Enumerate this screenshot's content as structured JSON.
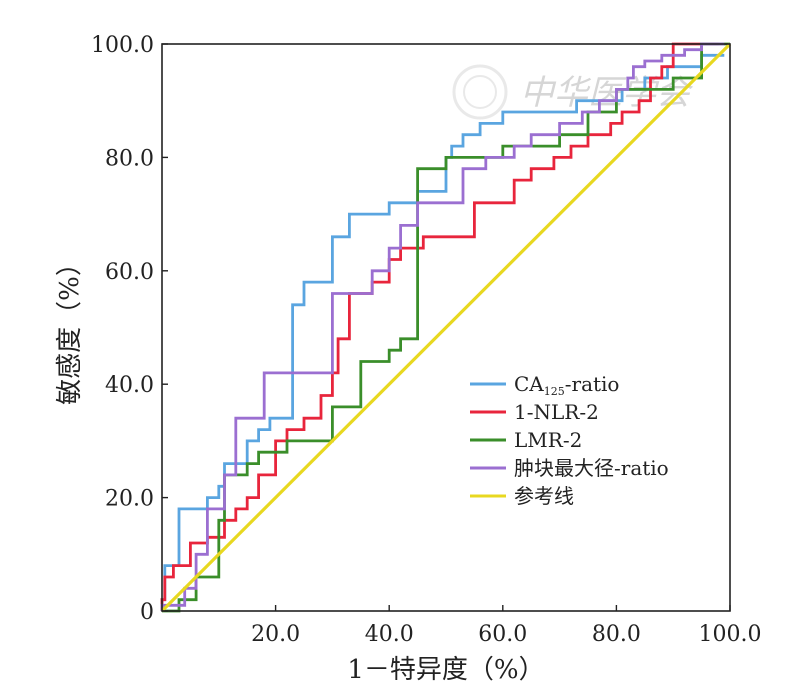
{
  "chart_data": {
    "type": "line",
    "xlabel": "1－特异度（%）",
    "ylabel": "敏感度（%）",
    "xlim": [
      0,
      100
    ],
    "ylim": [
      0,
      100
    ],
    "x_ticks": [
      "20.0",
      "40.0",
      "60.0",
      "80.0",
      "100.0"
    ],
    "y_ticks": [
      "0",
      "20.0",
      "40.0",
      "60.0",
      "80.0",
      "100.0"
    ],
    "legend_position": "lower-right",
    "watermark": "中华医学会",
    "series": [
      {
        "name": "CA125-ratio",
        "name_main": "CA",
        "name_sub": "125",
        "name_suffix": "-ratio",
        "color": "#5aa5e0",
        "x": [
          0,
          0,
          0.5,
          0.5,
          3,
          3,
          8,
          8,
          10,
          10,
          11,
          11,
          15,
          15,
          17,
          17,
          19,
          19,
          23,
          23,
          25,
          25,
          27,
          27,
          30,
          30,
          33,
          33,
          40,
          40,
          45,
          45,
          50,
          50,
          51,
          51,
          53,
          53,
          56,
          56,
          60,
          60,
          67,
          67,
          73,
          73,
          79,
          79,
          81,
          81,
          85,
          85,
          89,
          89,
          95,
          95,
          99
        ],
        "y": [
          0,
          2,
          2,
          8,
          8,
          18,
          18,
          20,
          20,
          22,
          22,
          26,
          26,
          30,
          30,
          32,
          32,
          34,
          34,
          54,
          54,
          58,
          58,
          58,
          58,
          66,
          66,
          70,
          70,
          72,
          72,
          74,
          74,
          80,
          80,
          82,
          82,
          84,
          84,
          86,
          86,
          88,
          88,
          88,
          88,
          90,
          90,
          90,
          90,
          92,
          92,
          94,
          94,
          96,
          96,
          98,
          98
        ]
      },
      {
        "name": "1-NLR-2",
        "color": "#e8253c",
        "x": [
          0,
          0,
          0.5,
          0.5,
          2,
          2,
          5,
          5,
          8,
          8,
          11,
          11,
          13,
          13,
          15,
          15,
          17,
          17,
          20,
          20,
          22,
          22,
          25,
          25,
          28,
          28,
          30,
          30,
          31,
          31,
          33,
          33,
          37,
          37,
          40,
          40,
          42,
          42,
          46,
          46,
          55,
          55,
          62,
          62,
          65,
          65,
          69,
          69,
          72,
          72,
          75,
          75,
          79,
          79,
          81,
          81,
          84,
          84,
          86,
          86,
          88,
          88,
          90,
          90,
          98
        ],
        "y": [
          0,
          2,
          2,
          6,
          6,
          8,
          8,
          12,
          12,
          13,
          13,
          16,
          16,
          18,
          18,
          20,
          20,
          24,
          24,
          30,
          30,
          32,
          32,
          34,
          34,
          38,
          38,
          42,
          42,
          48,
          48,
          56,
          56,
          58,
          58,
          62,
          62,
          64,
          64,
          66,
          66,
          72,
          72,
          76,
          76,
          78,
          78,
          80,
          80,
          82,
          82,
          84,
          84,
          86,
          86,
          88,
          88,
          90,
          90,
          94,
          94,
          96,
          96,
          100,
          100
        ]
      },
      {
        "name": "LMR-2",
        "color": "#3a8e2a",
        "x": [
          0,
          3,
          3,
          6,
          6,
          10,
          10,
          11,
          11,
          15,
          15,
          17,
          17,
          22,
          22,
          30,
          30,
          35,
          35,
          40,
          40,
          42,
          42,
          45,
          45,
          50,
          50,
          60,
          60,
          70,
          70,
          75,
          75,
          80,
          80,
          90,
          90,
          95,
          95,
          100
        ],
        "y": [
          0,
          0,
          2,
          2,
          6,
          6,
          16,
          16,
          24,
          24,
          26,
          26,
          28,
          28,
          30,
          30,
          36,
          36,
          44,
          44,
          46,
          46,
          48,
          48,
          78,
          78,
          80,
          80,
          82,
          82,
          84,
          84,
          88,
          88,
          92,
          92,
          94,
          94,
          100,
          100
        ]
      },
      {
        "name": "肿块最大径-ratio",
        "color": "#9b6fd1",
        "x": [
          0,
          0,
          4,
          4,
          6,
          6,
          8,
          8,
          11,
          11,
          13,
          13,
          18,
          18,
          30,
          30,
          32,
          32,
          37,
          37,
          40,
          40,
          42,
          42,
          45,
          45,
          53,
          53,
          57,
          57,
          62,
          62,
          65,
          65,
          70,
          70,
          74,
          74,
          77,
          77,
          80,
          80,
          82,
          82,
          83,
          83,
          85,
          85,
          88,
          88,
          92,
          92,
          95,
          95,
          99
        ],
        "y": [
          0,
          1,
          1,
          4,
          4,
          10,
          10,
          18,
          18,
          24,
          24,
          34,
          34,
          42,
          42,
          56,
          56,
          56,
          56,
          60,
          60,
          64,
          64,
          68,
          68,
          72,
          72,
          78,
          78,
          80,
          80,
          82,
          82,
          84,
          84,
          86,
          86,
          88,
          88,
          90,
          90,
          92,
          92,
          94,
          94,
          96,
          96,
          97,
          97,
          98,
          98,
          99,
          99,
          100,
          100
        ]
      },
      {
        "name": "参考线",
        "color": "#e8d820",
        "x": [
          0,
          100
        ],
        "y": [
          0,
          100
        ]
      }
    ]
  }
}
